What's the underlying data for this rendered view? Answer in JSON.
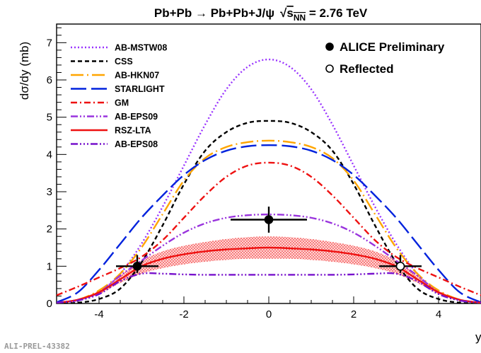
{
  "chart_data": {
    "type": "line",
    "title": "Pb+Pb → Pb+Pb+J/ψ",
    "energy": {
      "root": "√",
      "s": "s",
      "sub": "NN",
      "tail": " = 2.76 TeV"
    },
    "xlabel": "y",
    "ylabel": "dσ/dy (mb)",
    "xlim": [
      -5,
      5
    ],
    "ylim": [
      0,
      7.5
    ],
    "xticks": [
      -4,
      -2,
      0,
      2,
      4
    ],
    "yticks": [
      0,
      1,
      2,
      3,
      4,
      5,
      6,
      7
    ],
    "tick_labels_x": [
      "-4",
      "-2",
      "0",
      "2",
      "4"
    ],
    "tick_labels_y": [
      "0",
      "1",
      "2",
      "3",
      "4",
      "5",
      "6",
      "7"
    ],
    "grid": false,
    "legend_models_position": "top-left",
    "legend_data_position": "top-right",
    "series": [
      {
        "name": "AB-MSTW08",
        "color": "#9933ff",
        "dash": "dotted",
        "x": [
          -5,
          -4.5,
          -4,
          -3.5,
          -3,
          -2.5,
          -2,
          -1.5,
          -1,
          -0.5,
          0,
          0.5,
          1,
          1.5,
          2,
          2.5,
          3,
          3.5,
          4,
          4.5,
          5
        ],
        "y": [
          0.02,
          0.08,
          0.3,
          0.8,
          1.6,
          2.6,
          3.7,
          4.8,
          5.75,
          6.35,
          6.55,
          6.35,
          5.75,
          4.8,
          3.7,
          2.6,
          1.6,
          0.8,
          0.3,
          0.08,
          0.02
        ]
      },
      {
        "name": "CSS",
        "color": "#000000",
        "dash": "short",
        "x": [
          -5,
          -4.5,
          -4,
          -3.5,
          -3,
          -2.5,
          -2,
          -1.5,
          -1,
          -0.5,
          0,
          0.5,
          1,
          1.5,
          2,
          2.5,
          3,
          3.5,
          4,
          4.5,
          5
        ],
        "y": [
          0.0,
          0.02,
          0.12,
          0.4,
          1.1,
          2.1,
          3.2,
          4.1,
          4.6,
          4.85,
          4.9,
          4.85,
          4.6,
          4.1,
          3.2,
          2.1,
          1.1,
          0.4,
          0.12,
          0.02,
          0.0
        ]
      },
      {
        "name": "AB-HKN07",
        "color": "#ffa500",
        "dash": "longdot",
        "x": [
          -5,
          -4.5,
          -4,
          -3.5,
          -3,
          -2.5,
          -2,
          -1.5,
          -1,
          -0.5,
          0,
          0.5,
          1,
          1.5,
          2,
          2.5,
          3,
          3.5,
          4,
          4.5,
          5
        ],
        "y": [
          0.02,
          0.1,
          0.35,
          0.8,
          1.5,
          2.4,
          3.3,
          3.9,
          4.2,
          4.33,
          4.37,
          4.33,
          4.2,
          3.9,
          3.3,
          2.4,
          1.5,
          0.8,
          0.35,
          0.1,
          0.02
        ]
      },
      {
        "name": "STARLIGHT",
        "color": "#0022dd",
        "dash": "long",
        "x": [
          -5,
          -4.5,
          -4,
          -3.5,
          -3,
          -2.5,
          -2,
          -1.5,
          -1,
          -0.5,
          0,
          0.5,
          1,
          1.5,
          2,
          2.5,
          3,
          3.5,
          4,
          4.5,
          5
        ],
        "y": [
          0.03,
          0.3,
          0.9,
          1.6,
          2.3,
          2.9,
          3.45,
          3.85,
          4.1,
          4.22,
          4.25,
          4.22,
          4.1,
          3.85,
          3.45,
          2.9,
          2.3,
          1.6,
          0.9,
          0.3,
          0.03
        ]
      },
      {
        "name": "GM",
        "color": "#ee1111",
        "dash": "dashdot",
        "x": [
          -5,
          -4.5,
          -4,
          -3.5,
          -3,
          -2.5,
          -2,
          -1.5,
          -1,
          -0.5,
          0,
          0.5,
          1,
          1.5,
          2,
          2.5,
          3,
          3.5,
          4,
          4.5,
          5
        ],
        "y": [
          0.22,
          0.45,
          0.7,
          0.95,
          1.25,
          1.7,
          2.3,
          2.9,
          3.4,
          3.7,
          3.78,
          3.7,
          3.4,
          2.9,
          2.3,
          1.7,
          1.25,
          0.95,
          0.7,
          0.45,
          0.22
        ]
      },
      {
        "name": "AB-EPS09",
        "color": "#9933dd",
        "dash": "dashdotdot",
        "x": [
          -5,
          -4.5,
          -4,
          -3.5,
          -3,
          -2.5,
          -2,
          -1.5,
          -1,
          -0.5,
          0,
          0.5,
          1,
          1.5,
          2,
          2.5,
          3,
          3.5,
          4,
          4.5,
          5
        ],
        "y": [
          0.02,
          0.1,
          0.3,
          0.75,
          1.15,
          1.55,
          1.9,
          2.15,
          2.3,
          2.37,
          2.39,
          2.37,
          2.3,
          2.15,
          1.9,
          1.55,
          1.15,
          0.75,
          0.3,
          0.1,
          0.02
        ]
      },
      {
        "name": "RSZ-LTA",
        "color": "#ee1111",
        "dash": "solid",
        "x": [
          -5,
          -4.5,
          -4,
          -3.5,
          -3,
          -2.5,
          -2,
          -1.5,
          -1,
          -0.5,
          0,
          0.5,
          1,
          1.5,
          2,
          2.5,
          3,
          3.5,
          4,
          4.5,
          5
        ],
        "y": [
          0.02,
          0.1,
          0.3,
          0.65,
          1.0,
          1.2,
          1.32,
          1.4,
          1.45,
          1.48,
          1.5,
          1.48,
          1.45,
          1.4,
          1.32,
          1.2,
          1.0,
          0.65,
          0.3,
          0.1,
          0.02
        ],
        "band_low": [
          0.02,
          0.08,
          0.25,
          0.55,
          0.8,
          0.95,
          1.05,
          1.12,
          1.17,
          1.2,
          1.2,
          1.2,
          1.17,
          1.12,
          1.05,
          0.95,
          0.8,
          0.55,
          0.25,
          0.08,
          0.02
        ],
        "band_high": [
          0.03,
          0.12,
          0.35,
          0.75,
          1.15,
          1.4,
          1.55,
          1.65,
          1.73,
          1.78,
          1.8,
          1.78,
          1.73,
          1.65,
          1.55,
          1.4,
          1.15,
          0.75,
          0.35,
          0.12,
          0.03
        ]
      },
      {
        "name": "AB-EPS08",
        "color": "#7711cc",
        "dash": "dashdotdotdot",
        "x": [
          -5,
          -4.5,
          -4,
          -3.5,
          -3,
          -2.5,
          -2,
          -1.5,
          -1,
          -0.5,
          0,
          0.5,
          1,
          1.5,
          2,
          2.5,
          3,
          3.5,
          4,
          4.5,
          5
        ],
        "y": [
          0.02,
          0.08,
          0.25,
          0.6,
          0.8,
          0.8,
          0.78,
          0.77,
          0.77,
          0.77,
          0.77,
          0.77,
          0.77,
          0.77,
          0.78,
          0.8,
          0.8,
          0.6,
          0.25,
          0.08,
          0.02
        ]
      }
    ],
    "data_points": [
      {
        "name": "ALICE Preliminary",
        "filled": true,
        "points": [
          {
            "x": -3.1,
            "y": 1.0,
            "xerr": 0.5,
            "yerr_low": 0.18,
            "yerr_high": 0.3
          },
          {
            "x": 0.0,
            "y": 2.25,
            "xerr": 0.9,
            "yerr_low": 0.35,
            "yerr_high": 0.35
          }
        ]
      },
      {
        "name": "Reflected",
        "filled": false,
        "points": [
          {
            "x": 3.1,
            "y": 1.0,
            "xerr": 0.5,
            "yerr_low": 0.18,
            "yerr_high": 0.3
          }
        ]
      }
    ]
  },
  "footer_label": "ALI-PREL-43382"
}
